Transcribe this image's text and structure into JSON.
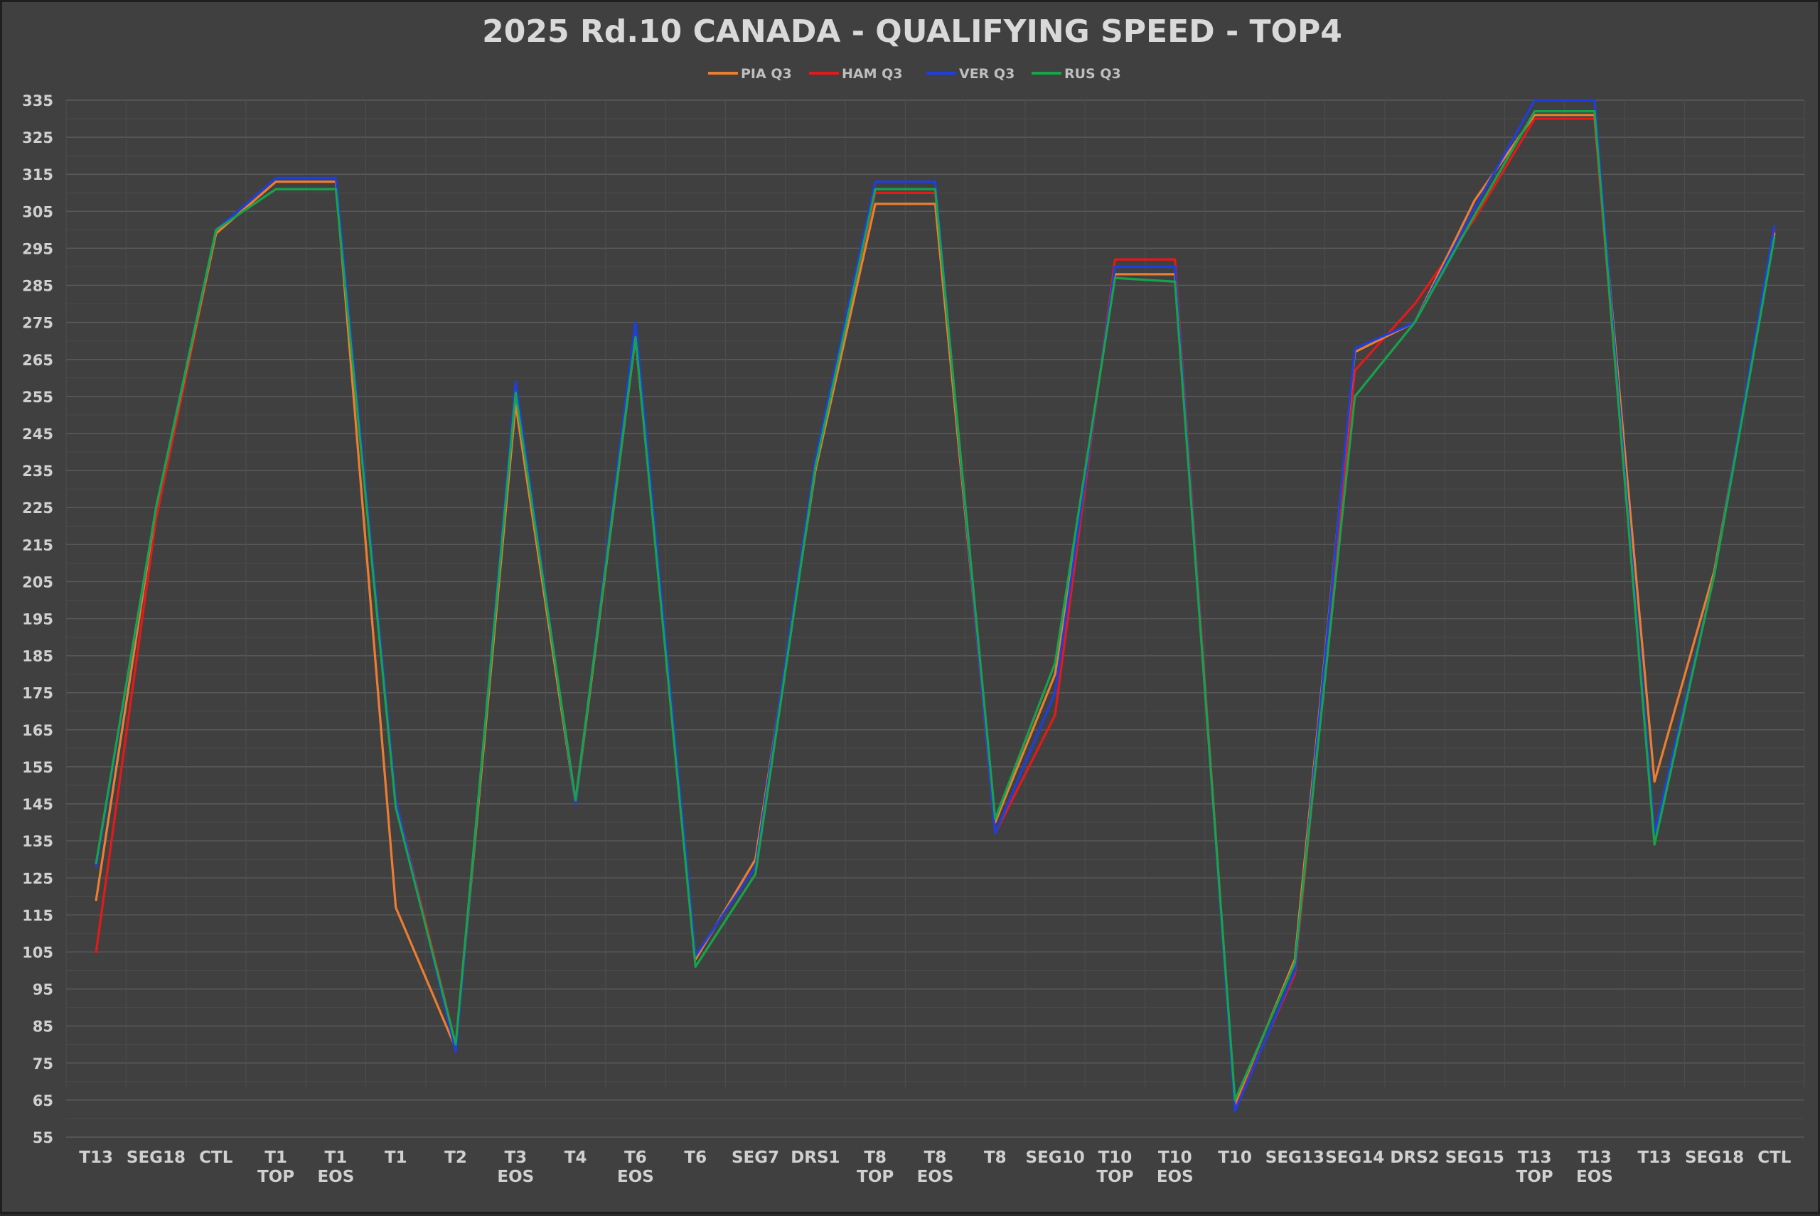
{
  "chart_data": {
    "type": "line",
    "title": "2025 Rd.10 CANADA - QUALIFYING SPEED - TOP4",
    "xlabel": "",
    "ylabel": "",
    "ylim": [
      55,
      335
    ],
    "yticks": [
      55,
      65,
      75,
      85,
      95,
      105,
      115,
      125,
      135,
      145,
      155,
      165,
      175,
      185,
      195,
      205,
      215,
      225,
      235,
      245,
      255,
      265,
      275,
      285,
      295,
      305,
      315,
      325,
      335
    ],
    "grid": true,
    "legend_position": "top-center",
    "categories": [
      [
        "T13"
      ],
      [
        "SEG18"
      ],
      [
        "CTL"
      ],
      [
        "T1",
        "TOP"
      ],
      [
        "T1",
        "EOS"
      ],
      [
        "T1"
      ],
      [
        "T2"
      ],
      [
        "T3",
        "EOS"
      ],
      [
        "T4"
      ],
      [
        "T6",
        "EOS"
      ],
      [
        "T6"
      ],
      [
        "SEG7"
      ],
      [
        "DRS1"
      ],
      [
        "T8",
        "TOP"
      ],
      [
        "T8",
        "EOS"
      ],
      [
        "T8"
      ],
      [
        "SEG10"
      ],
      [
        "T10",
        "TOP"
      ],
      [
        "T10",
        "EOS"
      ],
      [
        "T10"
      ],
      [
        "SEG13"
      ],
      [
        "SEG14"
      ],
      [
        "DRS2"
      ],
      [
        "SEG15"
      ],
      [
        "T13",
        "TOP"
      ],
      [
        "T13",
        "EOS"
      ],
      [
        "T13"
      ],
      [
        "SEG18"
      ],
      [
        "CTL"
      ]
    ],
    "series": [
      {
        "name": "PIA Q3",
        "color": "#ed7d31",
        "values": [
          119,
          225,
          299,
          313,
          313,
          117,
          79,
          253,
          145,
          271,
          103,
          130,
          235,
          307,
          307,
          140,
          180,
          288,
          288,
          64,
          103,
          267,
          275,
          308,
          331,
          331,
          151,
          208,
          299
        ]
      },
      {
        "name": "HAM  Q3",
        "color": "#e61919",
        "values": [
          105,
          222,
          299,
          313,
          313,
          146,
          80,
          255,
          146,
          271,
          104,
          128,
          237,
          310,
          310,
          137,
          169,
          292,
          292,
          63,
          99,
          262,
          280,
          303,
          330,
          330,
          137,
          207,
          300
        ]
      },
      {
        "name": "VER Q3",
        "color": "#1d3fe0",
        "values": [
          128,
          225,
          300,
          314,
          314,
          146,
          78,
          259,
          145,
          275,
          104,
          128,
          238,
          313,
          313,
          137,
          175,
          290,
          290,
          62,
          100,
          268,
          275,
          306,
          335,
          335,
          137,
          207,
          301
        ]
      },
      {
        "name": "RUS Q3",
        "color": "#16a34a",
        "values": [
          129,
          225,
          300,
          311,
          311,
          144,
          80,
          256,
          146,
          271,
          101,
          126,
          236,
          311,
          311,
          141,
          183,
          287,
          286,
          65,
          102,
          255,
          275,
          304,
          332,
          332,
          134,
          207,
          298
        ]
      }
    ]
  }
}
